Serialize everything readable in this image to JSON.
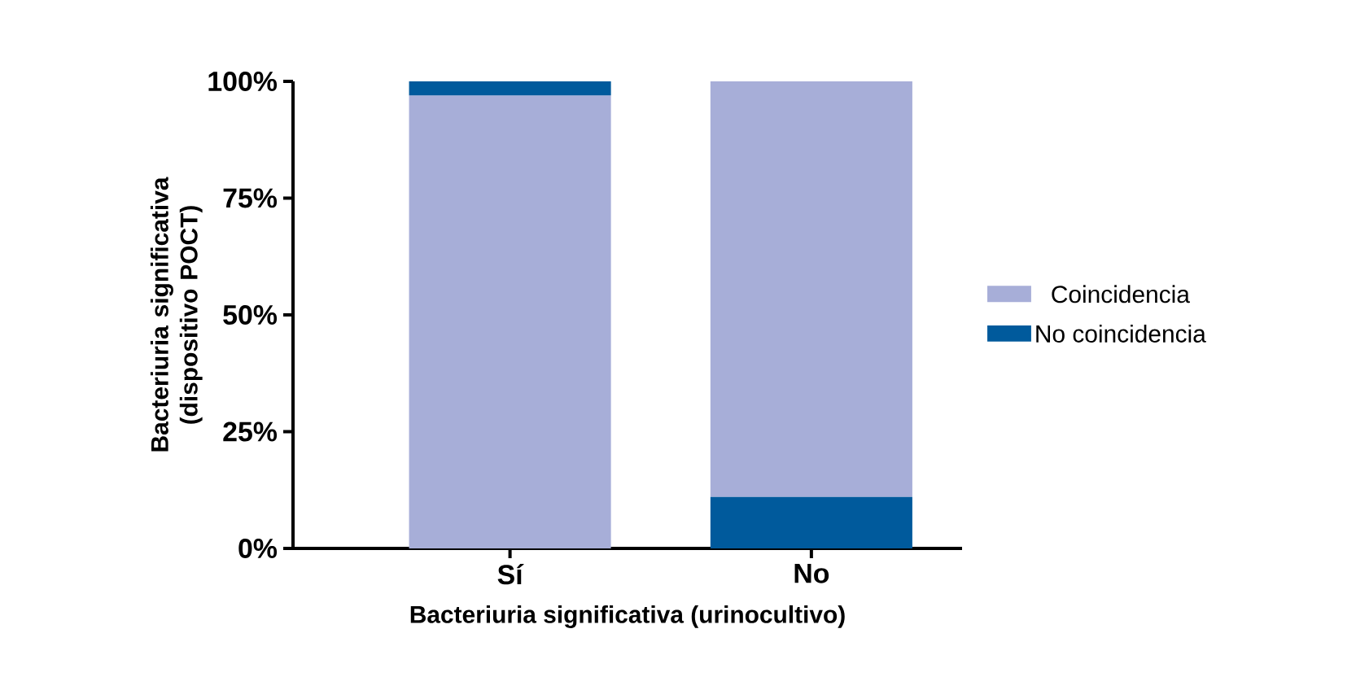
{
  "chart_data": {
    "type": "bar",
    "xlabel": "Bacteriuria significativa (urinocultivo)",
    "ylabel": "Bacteriuria significativa (dispositivo POCT)",
    "categories": [
      "Sí",
      "No"
    ],
    "series": [
      {
        "name": "Coincidencia",
        "color": "#a7aed8",
        "values": [
          97,
          89
        ],
        "base": [
          0,
          11
        ]
      },
      {
        "name": "No coincidencia",
        "color": "#005a9c",
        "values": [
          3,
          11
        ],
        "base": [
          97,
          0
        ]
      }
    ],
    "ylim": [
      0,
      100
    ],
    "yticks": [
      {
        "value": 0,
        "label": "0%"
      },
      {
        "value": 25,
        "label": "25%"
      },
      {
        "value": 50,
        "label": "50%"
      },
      {
        "value": 75,
        "label": "75%"
      },
      {
        "value": 100,
        "label": "100%"
      }
    ],
    "legend": "right"
  }
}
